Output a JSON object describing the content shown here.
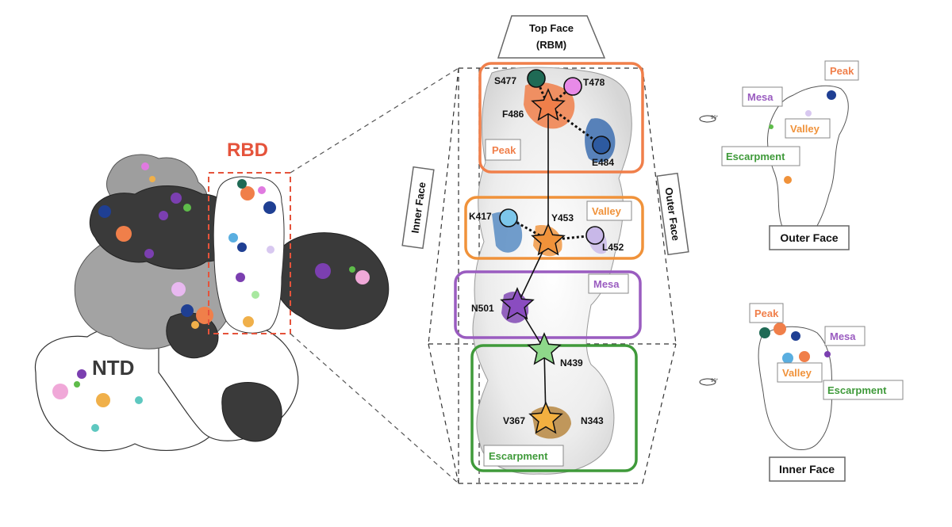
{
  "left_panel": {
    "rbd_label": "RBD",
    "ntd_label": "NTD"
  },
  "top_face": {
    "line1": "Top Face",
    "line2": "(RBM)"
  },
  "side_labels": {
    "inner": "Inner Face",
    "outer": "Outer Face"
  },
  "regions": {
    "peak": "Peak",
    "valley": "Valley",
    "mesa": "Mesa",
    "escarpment": "Escarpment"
  },
  "residues": {
    "s477": "S477",
    "t478": "T478",
    "f486": "F486",
    "e484": "E484",
    "k417": "K417",
    "y453": "Y453",
    "l452": "L452",
    "n501": "N501",
    "n439": "N439",
    "v367": "V367",
    "n343": "N343"
  },
  "right_top": {
    "peak": "Peak",
    "mesa": "Mesa",
    "valley": "Valley",
    "escarpment": "Escarpment",
    "caption": "Outer Face",
    "rotation": "90°"
  },
  "right_bottom": {
    "peak": "Peak",
    "mesa": "Mesa",
    "valley": "Valley",
    "escarpment": "Escarpment",
    "caption": "Inner Face",
    "rotation": "90°"
  },
  "colors": {
    "peak": "#f07f4a",
    "valley": "#f0923a",
    "mesa": "#9a5cc0",
    "escarpment": "#3f9a3a",
    "rbd_red": "#e5533b",
    "dark_gray": "#3c3c3c",
    "mid_gray": "#9a9a9a"
  }
}
